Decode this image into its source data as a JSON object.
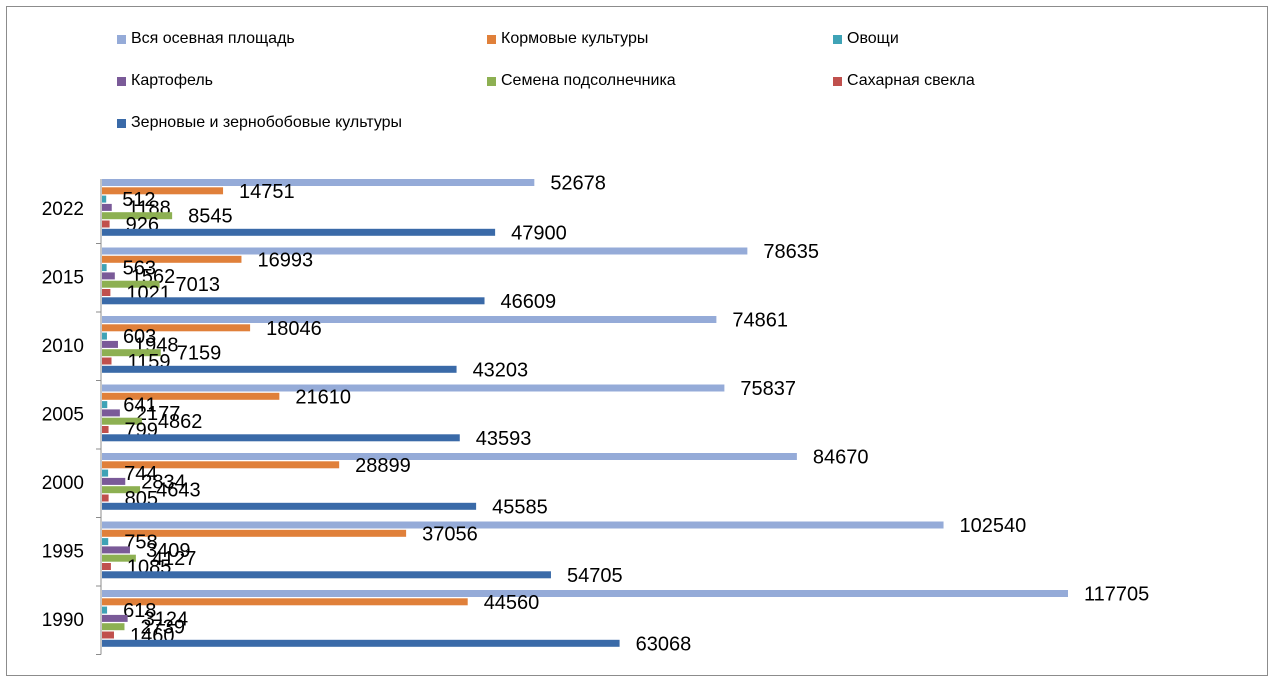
{
  "chart_data": {
    "type": "bar",
    "orientation": "horizontal",
    "categories": [
      "2022",
      "2015",
      "2010",
      "2005",
      "2000",
      "1995",
      "1990"
    ],
    "series": [
      {
        "name": "Вся осевная площадь",
        "color": "#95abd8",
        "values": [
          52678,
          78635,
          74861,
          75837,
          84670,
          102540,
          117705
        ]
      },
      {
        "name": "Кормовые культуры",
        "color": "#e0803a",
        "values": [
          14751,
          16993,
          18046,
          21610,
          28899,
          37056,
          44560
        ]
      },
      {
        "name": "Овощи",
        "color": "#3fa3b6",
        "values": [
          512,
          563,
          603,
          641,
          744,
          758,
          618
        ]
      },
      {
        "name": "Картофель",
        "color": "#7a5a98",
        "values": [
          1188,
          1562,
          1948,
          2177,
          2834,
          3409,
          3124
        ]
      },
      {
        "name": "Семена подсолнечника",
        "color": "#8db052",
        "values": [
          8545,
          7013,
          7159,
          4862,
          4643,
          4127,
          2739
        ]
      },
      {
        "name": "Сахарная свекла",
        "color": "#c0504d",
        "values": [
          926,
          1021,
          1159,
          799,
          805,
          1085,
          1460
        ]
      },
      {
        "name": "Зерновые и зернобобовые культуры",
        "color": "#3a6aa8",
        "values": [
          47900,
          46609,
          43203,
          43593,
          45585,
          54705,
          63068
        ]
      }
    ],
    "legend_position": "top",
    "grid": false
  }
}
